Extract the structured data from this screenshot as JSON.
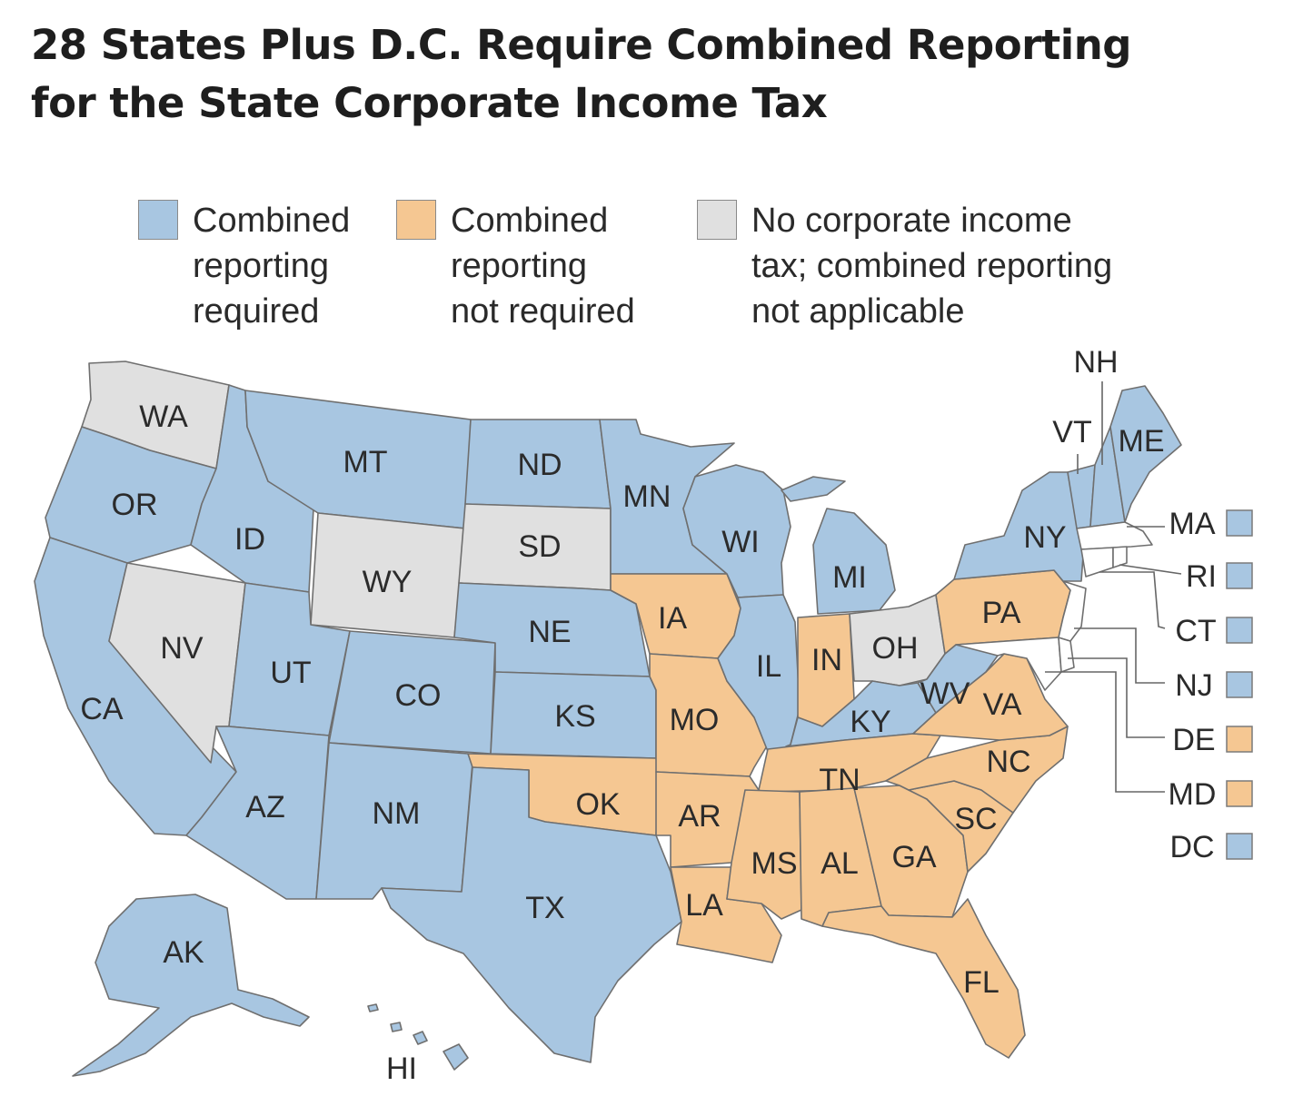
{
  "title": {
    "line1": "28 States Plus D.C. Require Combined Reporting",
    "line2": "for the State Corporate Income Tax"
  },
  "colors": {
    "combined_required": "#a8c6e1",
    "not_required": "#f5c792",
    "no_tax": "#e0e0e0",
    "border": "#6f6f6f"
  },
  "legend": [
    {
      "id": "combined_required",
      "lines": [
        "Combined",
        "reporting",
        "required"
      ]
    },
    {
      "id": "not_required",
      "lines": [
        "Combined",
        "reporting",
        "not required"
      ]
    },
    {
      "id": "no_tax",
      "lines": [
        "No corporate income",
        "tax; combined reporting",
        "not applicable"
      ]
    }
  ],
  "states": {
    "WA": "no_tax",
    "OR": "combined_required",
    "CA": "combined_required",
    "NV": "no_tax",
    "ID": "combined_required",
    "MT": "combined_required",
    "WY": "no_tax",
    "UT": "combined_required",
    "AZ": "combined_required",
    "CO": "combined_required",
    "NM": "combined_required",
    "ND": "combined_required",
    "SD": "no_tax",
    "NE": "combined_required",
    "KS": "combined_required",
    "OK": "not_required",
    "TX": "combined_required",
    "MN": "combined_required",
    "IA": "not_required",
    "MO": "not_required",
    "AR": "not_required",
    "LA": "not_required",
    "WI": "combined_required",
    "IL": "combined_required",
    "MI": "combined_required",
    "IN": "not_required",
    "OH": "no_tax",
    "KY": "combined_required",
    "TN": "not_required",
    "MS": "not_required",
    "AL": "not_required",
    "GA": "not_required",
    "FL": "not_required",
    "SC": "not_required",
    "NC": "not_required",
    "VA": "not_required",
    "WV": "combined_required",
    "PA": "not_required",
    "NY": "combined_required",
    "VT": "combined_required",
    "NH": "combined_required",
    "ME": "combined_required",
    "AK": "combined_required",
    "HI": "combined_required"
  },
  "small_states": [
    {
      "abbr": "MA",
      "status": "combined_required"
    },
    {
      "abbr": "RI",
      "status": "combined_required"
    },
    {
      "abbr": "CT",
      "status": "combined_required"
    },
    {
      "abbr": "NJ",
      "status": "combined_required"
    },
    {
      "abbr": "DE",
      "status": "not_required"
    },
    {
      "abbr": "MD",
      "status": "not_required"
    },
    {
      "abbr": "DC",
      "status": "combined_required"
    }
  ],
  "state_labels": {
    "WA": "WA",
    "OR": "OR",
    "CA": "CA",
    "NV": "NV",
    "ID": "ID",
    "MT": "MT",
    "WY": "WY",
    "UT": "UT",
    "AZ": "AZ",
    "CO": "CO",
    "NM": "NM",
    "ND": "ND",
    "SD": "SD",
    "NE": "NE",
    "KS": "KS",
    "OK": "OK",
    "TX": "TX",
    "MN": "MN",
    "IA": "IA",
    "MO": "MO",
    "AR": "AR",
    "LA": "LA",
    "WI": "WI",
    "IL": "IL",
    "MI": "MI",
    "IN": "IN",
    "OH": "OH",
    "KY": "KY",
    "TN": "TN",
    "MS": "MS",
    "AL": "AL",
    "GA": "GA",
    "FL": "FL",
    "SC": "SC",
    "NC": "NC",
    "VA": "VA",
    "WV": "WV",
    "PA": "PA",
    "NY": "NY",
    "VT": "VT",
    "NH": "NH",
    "ME": "ME",
    "AK": "AK",
    "HI": "HI"
  }
}
